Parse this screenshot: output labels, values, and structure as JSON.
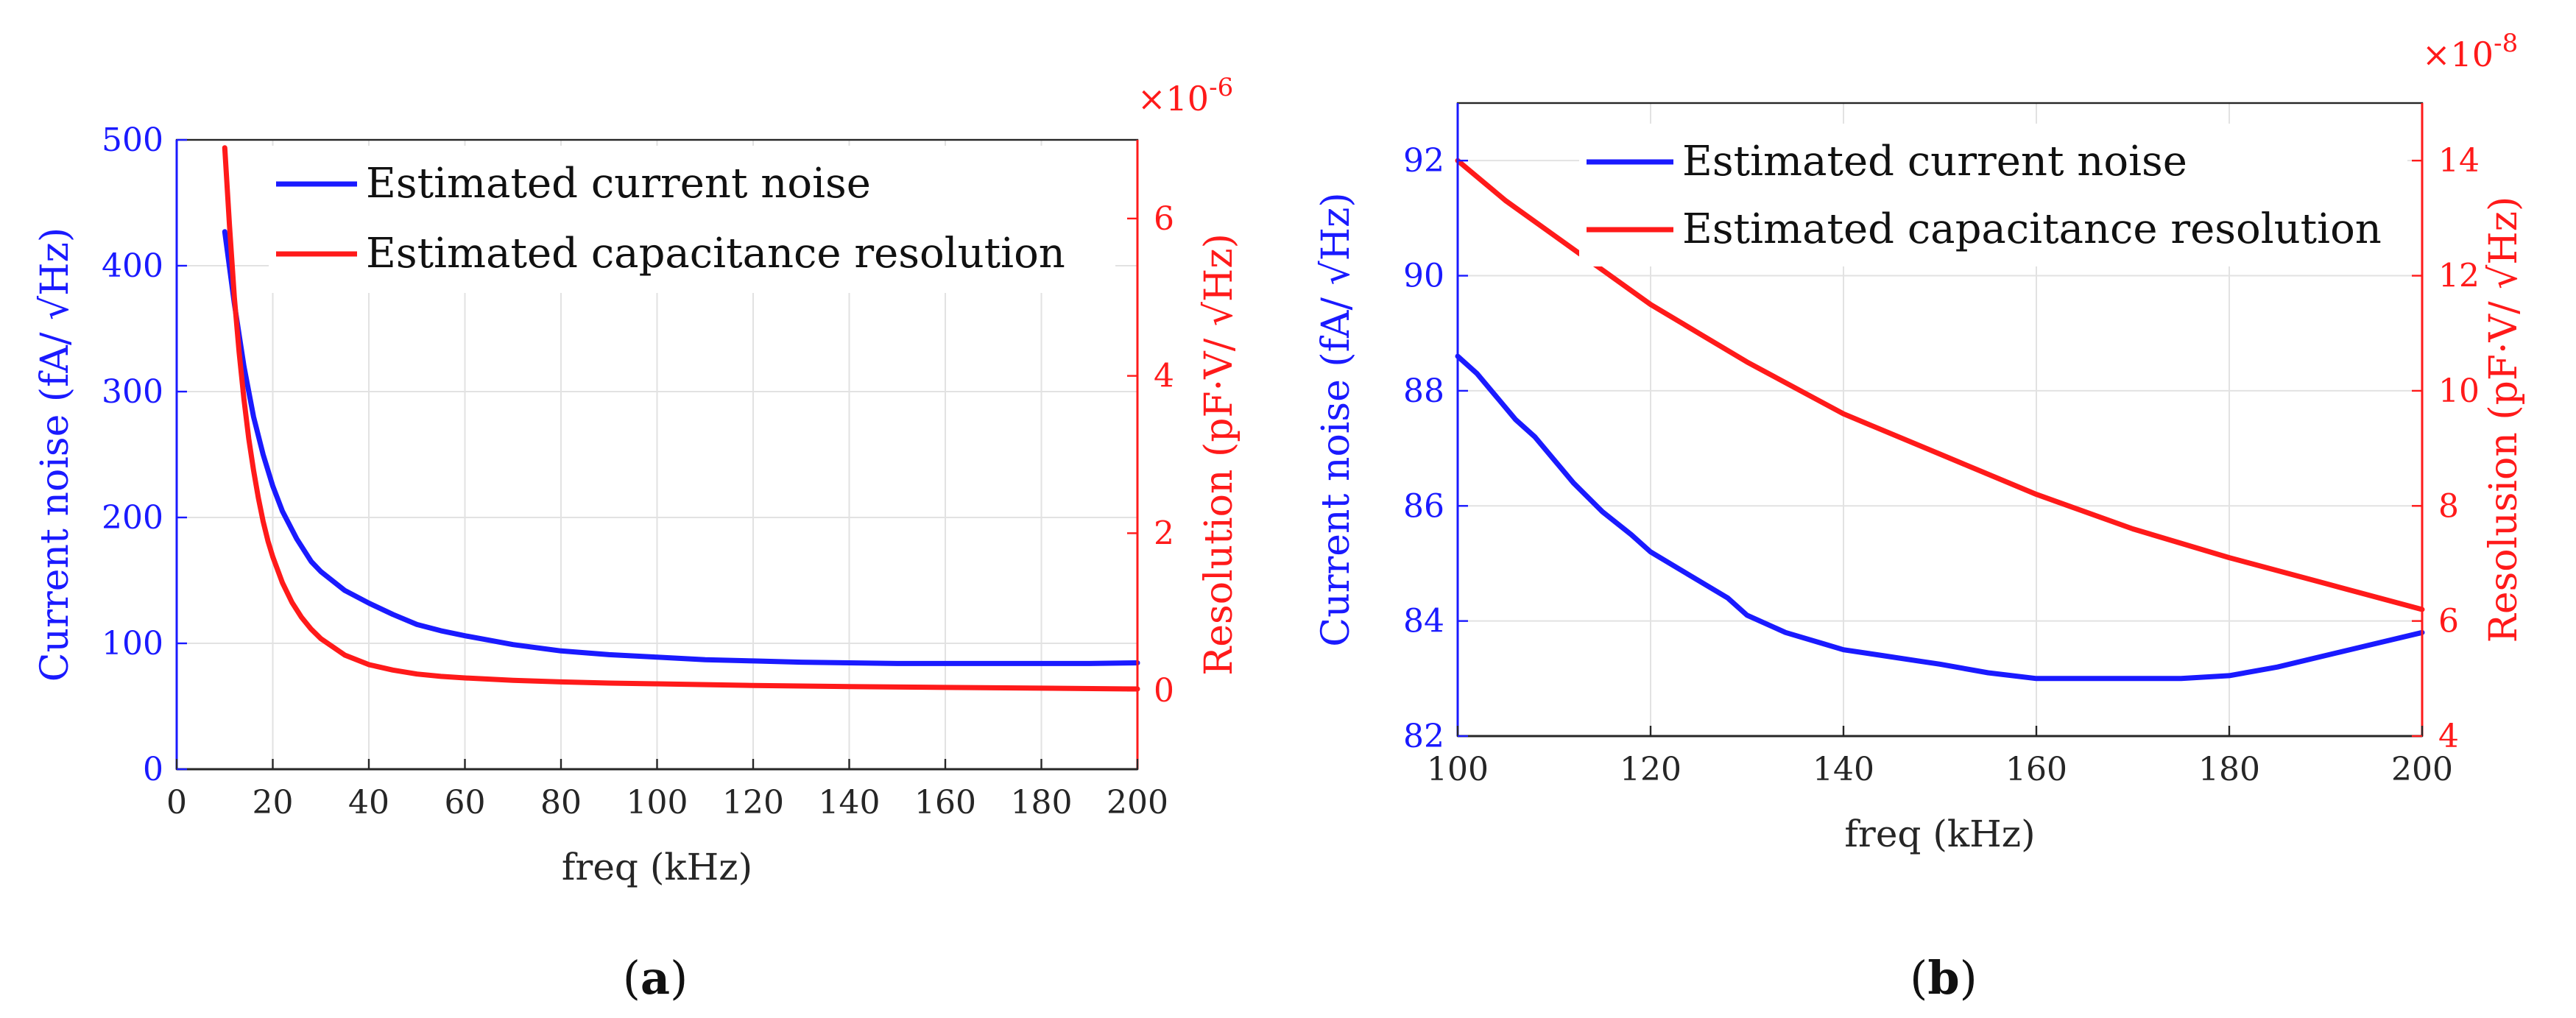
{
  "colors": {
    "current": "#1a1aff",
    "resolution": "#ff1a1a",
    "axis": "#262626",
    "grid": "#e2e2e2"
  },
  "chart_data": [
    {
      "type": "line",
      "panel": "(a)",
      "panel_letter": "a",
      "xlabel": "freq (kHz)",
      "ylabel_left": "Current noise (fA/ √Hz)",
      "ylabel_right": "Resolution (pF·V/ √Hz)",
      "right_multiplier": "×10",
      "right_exponent": "-6",
      "xlim": [
        0,
        200
      ],
      "ylim_left": [
        0,
        500
      ],
      "ylim_right": [
        -1.0,
        7.0
      ],
      "xticks": [
        0,
        20,
        40,
        60,
        80,
        100,
        120,
        140,
        160,
        180,
        200
      ],
      "yticks_left": [
        0,
        100,
        200,
        300,
        400,
        500
      ],
      "yticks_right": [
        0,
        2,
        4,
        6
      ],
      "legend_position": "top-right",
      "series": [
        {
          "name": "Estimated current noise",
          "axis": "left",
          "x": [
            10,
            12,
            14,
            16,
            18,
            20,
            22,
            25,
            28,
            30,
            35,
            40,
            45,
            50,
            55,
            60,
            70,
            80,
            90,
            100,
            110,
            120,
            130,
            140,
            150,
            160,
            170,
            180,
            190,
            200
          ],
          "values": [
            427,
            370,
            320,
            280,
            250,
            225,
            205,
            183,
            165,
            157,
            142,
            132,
            123,
            115,
            110,
            106,
            99,
            94,
            91,
            89,
            87,
            86,
            85,
            84.5,
            84,
            84,
            84,
            84,
            84,
            84.5
          ]
        },
        {
          "name": "Estimated  capacitance resolution",
          "axis": "right",
          "x": [
            10,
            11,
            12,
            13,
            14,
            15,
            16,
            17,
            18,
            19,
            20,
            22,
            24,
            26,
            28,
            30,
            35,
            40,
            45,
            50,
            55,
            60,
            70,
            80,
            90,
            100,
            120,
            140,
            160,
            180,
            200
          ],
          "values": [
            6.9,
            5.9,
            5.0,
            4.3,
            3.7,
            3.2,
            2.8,
            2.45,
            2.15,
            1.9,
            1.7,
            1.37,
            1.12,
            0.93,
            0.78,
            0.66,
            0.45,
            0.33,
            0.26,
            0.21,
            0.18,
            0.16,
            0.13,
            0.11,
            0.095,
            0.085,
            0.065,
            0.05,
            0.04,
            0.03,
            0.02
          ]
        }
      ]
    },
    {
      "type": "line",
      "panel": "(b)",
      "panel_letter": "b",
      "xlabel": "freq (kHz)",
      "ylabel_left": "Current noise (fA/ √Hz)",
      "ylabel_right": "Resolusion (pF·V/ √Hz)",
      "right_multiplier": "×10",
      "right_exponent": "-8",
      "xlim": [
        100,
        200
      ],
      "ylim_left": [
        82,
        93
      ],
      "ylim_right": [
        4,
        15
      ],
      "xticks": [
        100,
        120,
        140,
        160,
        180,
        200
      ],
      "yticks_left": [
        82,
        84,
        86,
        88,
        90,
        92
      ],
      "yticks_right": [
        4,
        6,
        8,
        10,
        12,
        14
      ],
      "legend_position": "top",
      "series": [
        {
          "name": "Estimated current noise",
          "axis": "left",
          "x": [
            100,
            102,
            104,
            106,
            108,
            110,
            112,
            115,
            118,
            120,
            124,
            128,
            130,
            134,
            138,
            140,
            144,
            148,
            150,
            155,
            160,
            165,
            170,
            175,
            180,
            185,
            190,
            195,
            200
          ],
          "values": [
            88.6,
            88.3,
            87.9,
            87.5,
            87.2,
            86.8,
            86.4,
            85.9,
            85.5,
            85.2,
            84.8,
            84.4,
            84.1,
            83.8,
            83.6,
            83.5,
            83.4,
            83.3,
            83.25,
            83.1,
            83.0,
            83.0,
            83.0,
            83.0,
            83.05,
            83.2,
            83.4,
            83.6,
            83.8
          ]
        },
        {
          "name": "Estimated  capacitance resolution",
          "axis": "right",
          "x": [
            100,
            105,
            110,
            115,
            120,
            125,
            130,
            140,
            150,
            160,
            170,
            180,
            190,
            200
          ],
          "values": [
            14.0,
            13.3,
            12.7,
            12.1,
            11.5,
            11.0,
            10.5,
            9.6,
            8.9,
            8.2,
            7.6,
            7.1,
            6.65,
            6.2
          ]
        }
      ]
    }
  ]
}
